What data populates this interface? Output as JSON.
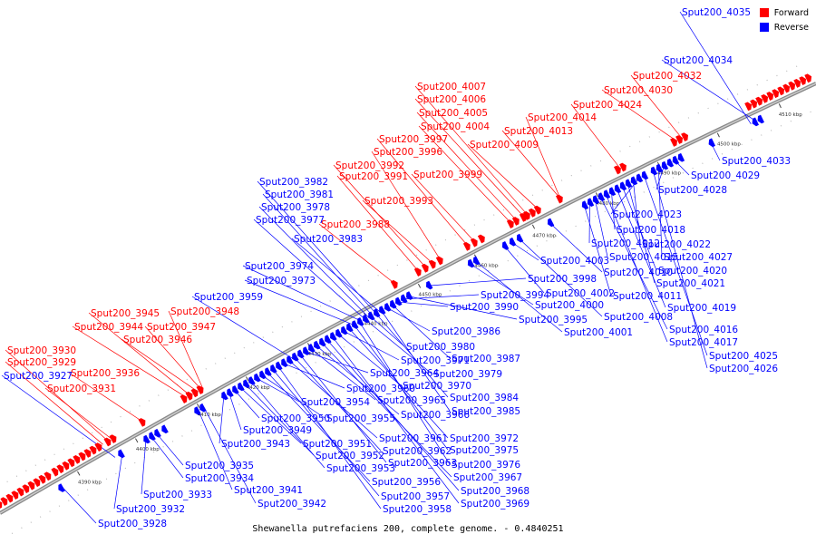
{
  "title": "Shewanella putrefaciens 200, complete genome. - 0.4840251",
  "legend": {
    "forward_label": "Forward",
    "reverse_label": "Reverse",
    "forward_color": "#ff0000",
    "reverse_color": "#0000ff"
  },
  "ticks": [
    "4390 kbp",
    "4400 kbp",
    "4410 kbp",
    "4420 kbp",
    "4430 kbp",
    "4440 kbp",
    "4450 kbp",
    "4460 kbp",
    "4470 kbp",
    "4480 kbp",
    "4490 kbp",
    "4500 kbp",
    "4510 kbp"
  ],
  "forward_genes": [
    "Sput200_3929",
    "Sput200_3930",
    "Sput200_3931",
    "Sput200_3936",
    "Sput200_3944",
    "Sput200_3945",
    "Sput200_3946",
    "Sput200_3947",
    "Sput200_3948",
    "Sput200_3988",
    "Sput200_3991",
    "Sput200_3992",
    "Sput200_3993",
    "Sput200_3996",
    "Sput200_3997",
    "Sput200_3999",
    "Sput200_4004",
    "Sput200_4005",
    "Sput200_4006",
    "Sput200_4007",
    "Sput200_4009",
    "Sput200_4013",
    "Sput200_4014",
    "Sput200_4024",
    "Sput200_4030",
    "Sput200_4032"
  ],
  "reverse_genes_upper": [
    "Sput200_3927",
    "Sput200_3959",
    "Sput200_3973",
    "Sput200_3974",
    "Sput200_3977",
    "Sput200_3978",
    "Sput200_3981",
    "Sput200_3982",
    "Sput200_3983",
    "Sput200_4034",
    "Sput200_4035"
  ],
  "reverse_genes_lower": [
    "Sput200_3928",
    "Sput200_3932",
    "Sput200_3933",
    "Sput200_3934",
    "Sput200_3935",
    "Sput200_3941",
    "Sput200_3942",
    "Sput200_3943",
    "Sput200_3949",
    "Sput200_3950",
    "Sput200_3951",
    "Sput200_3952",
    "Sput200_3953",
    "Sput200_3954",
    "Sput200_3955",
    "Sput200_3956",
    "Sput200_3957",
    "Sput200_3958",
    "Sput200_3960",
    "Sput200_3961",
    "Sput200_3962",
    "Sput200_3963",
    "Sput200_3964",
    "Sput200_3965",
    "Sput200_3966",
    "Sput200_3967",
    "Sput200_3968",
    "Sput200_3969",
    "Sput200_3970",
    "Sput200_3971",
    "Sput200_3972",
    "Sput200_3975",
    "Sput200_3976",
    "Sput200_3979",
    "Sput200_3980",
    "Sput200_3984",
    "Sput200_3985",
    "Sput200_3986",
    "Sput200_3987",
    "Sput200_3990",
    "Sput200_3994",
    "Sput200_3995",
    "Sput200_3998",
    "Sput200_4000",
    "Sput200_4001",
    "Sput200_4002",
    "Sput200_4003",
    "Sput200_4008",
    "Sput200_4010",
    "Sput200_4011",
    "Sput200_4012",
    "Sput200_4015",
    "Sput200_4016",
    "Sput200_4017",
    "Sput200_4018",
    "Sput200_4019",
    "Sput200_4020",
    "Sput200_4021",
    "Sput200_4022",
    "Sput200_4023",
    "Sput200_4025",
    "Sput200_4026",
    "Sput200_4027",
    "Sput200_4028",
    "Sput200_4029",
    "Sput200_4033"
  ]
}
